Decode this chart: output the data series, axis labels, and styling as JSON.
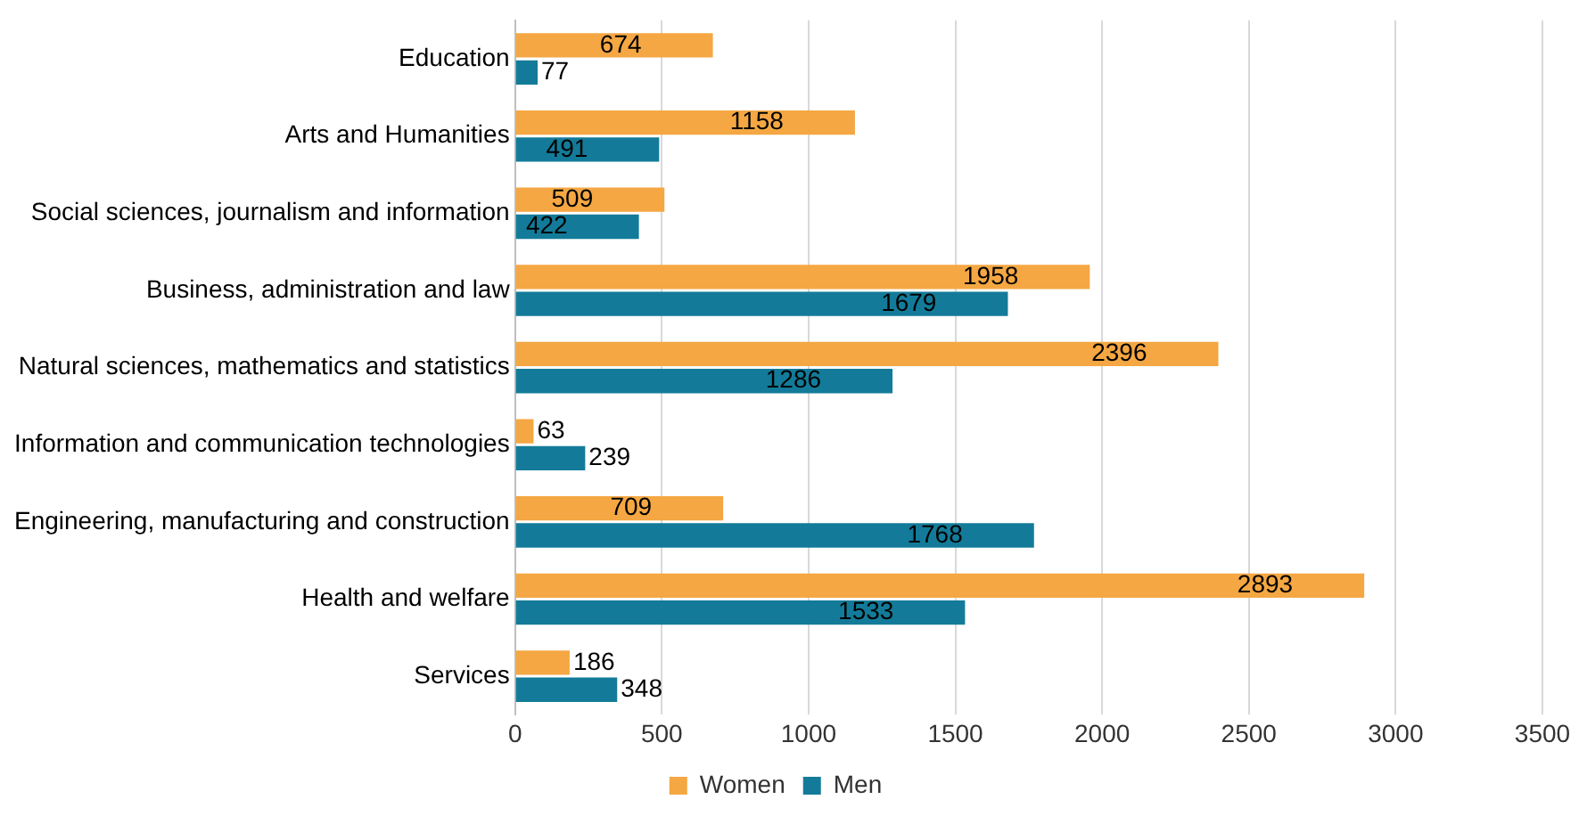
{
  "chart_data": {
    "type": "bar",
    "orientation": "horizontal",
    "categories": [
      "Education",
      "Arts and Humanities",
      "Social sciences, journalism and information",
      "Business, administration and law",
      "Natural sciences, mathematics and statistics",
      "Information and communication technologies",
      "Engineering, manufacturing and construction",
      "Health and welfare",
      "Services"
    ],
    "series": [
      {
        "name": "Women",
        "color": "#f4a742",
        "values": [
          674,
          1158,
          509,
          1958,
          2396,
          63,
          709,
          2893,
          186
        ]
      },
      {
        "name": "Men",
        "color": "#137b99",
        "values": [
          77,
          491,
          422,
          1679,
          1286,
          239,
          1768,
          1533,
          348
        ]
      }
    ],
    "xlim": [
      0,
      3500
    ],
    "xticks": [
      0,
      500,
      1000,
      1500,
      2000,
      2500,
      3000,
      3500
    ],
    "grid": "x",
    "legend": "bottom",
    "data_labels": true
  }
}
